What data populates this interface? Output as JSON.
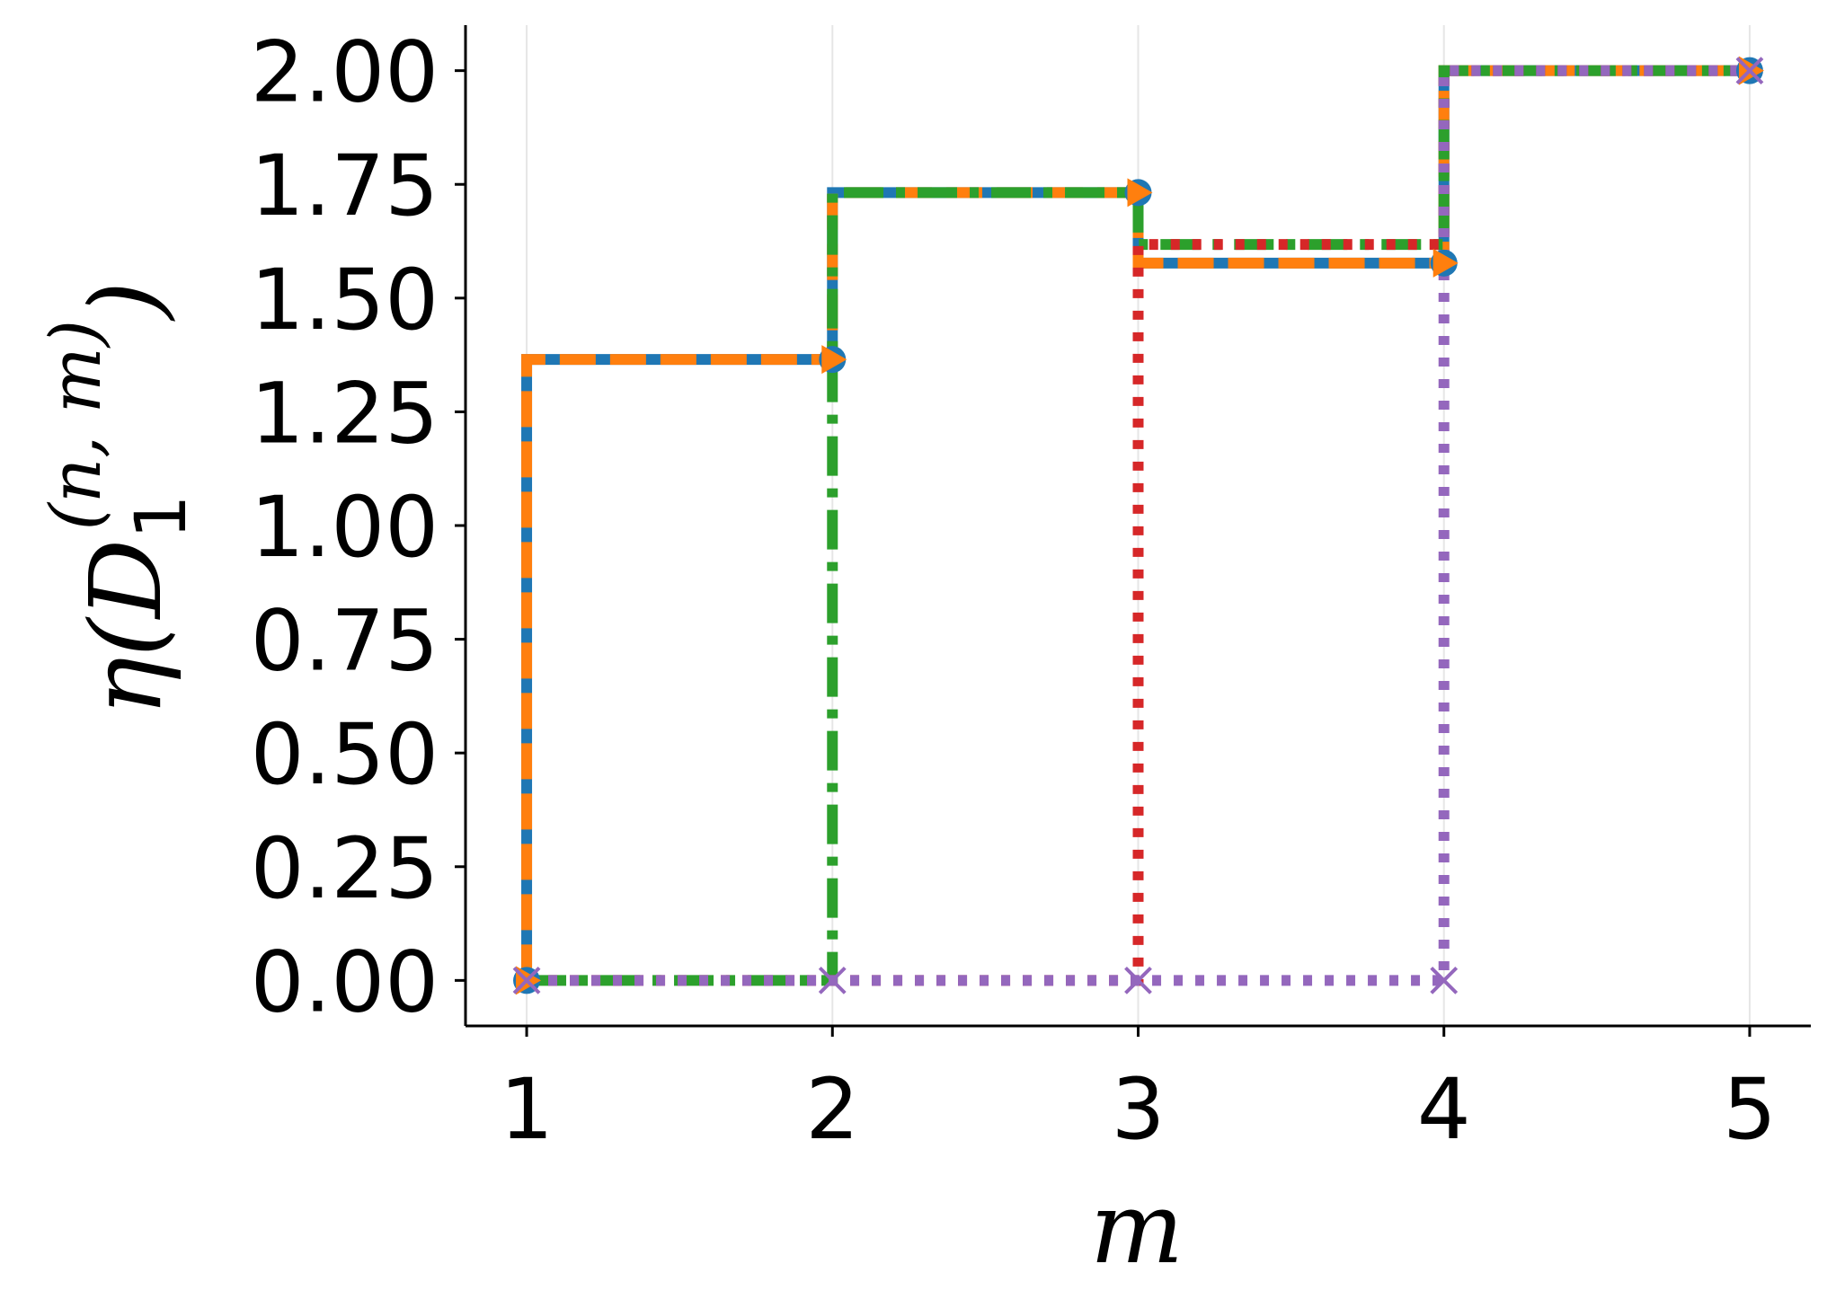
{
  "chart_data": {
    "type": "line",
    "subtype": "step",
    "xlabel": "m",
    "ylabel": {
      "main_open": "η(",
      "base": "D",
      "subscript": "1",
      "superscript": "(n, m)",
      "main_close": ")"
    },
    "xlim": [
      0.8,
      5.2
    ],
    "ylim": [
      -0.1,
      2.1
    ],
    "xticks": [
      1,
      2,
      3,
      4,
      5
    ],
    "yticks": [
      0.0,
      0.25,
      0.5,
      0.75,
      1.0,
      1.25,
      1.5,
      1.75,
      2.0
    ],
    "ytick_labels": [
      "0.00",
      "0.25",
      "0.50",
      "0.75",
      "1.00",
      "1.25",
      "1.50",
      "1.75",
      "2.00"
    ],
    "grid": "vertical",
    "legend": "none",
    "series": [
      {
        "color": "#1f77b4",
        "line_style": "solid",
        "marker": "circle",
        "x": [
          1,
          2,
          3,
          4,
          5
        ],
        "y": [
          0.0,
          1.365,
          1.732,
          1.577,
          2.0
        ]
      },
      {
        "color": "#ff7f0e",
        "line_style": "dashed",
        "marker": "triangle-right",
        "x": [
          1,
          2,
          3,
          4,
          5
        ],
        "y": [
          0.0,
          1.365,
          1.732,
          1.577,
          2.0
        ]
      },
      {
        "color": "#2ca02c",
        "line_style": "dashdot",
        "marker": "none",
        "x": [
          1,
          2,
          3,
          4,
          5
        ],
        "y": [
          0.0,
          0.0,
          1.732,
          1.618,
          2.0
        ]
      },
      {
        "color": "#d62728",
        "line_style": "dotted",
        "marker": "none",
        "x": [
          1,
          2,
          3,
          4,
          5
        ],
        "y": [
          0.0,
          0.0,
          0.0,
          1.618,
          2.0
        ]
      },
      {
        "color": "#9467bd",
        "line_style": "dotted",
        "marker": "x",
        "x": [
          1,
          2,
          3,
          4,
          5
        ],
        "y": [
          0.0,
          0.0,
          0.0,
          0.0,
          2.0
        ]
      }
    ]
  }
}
